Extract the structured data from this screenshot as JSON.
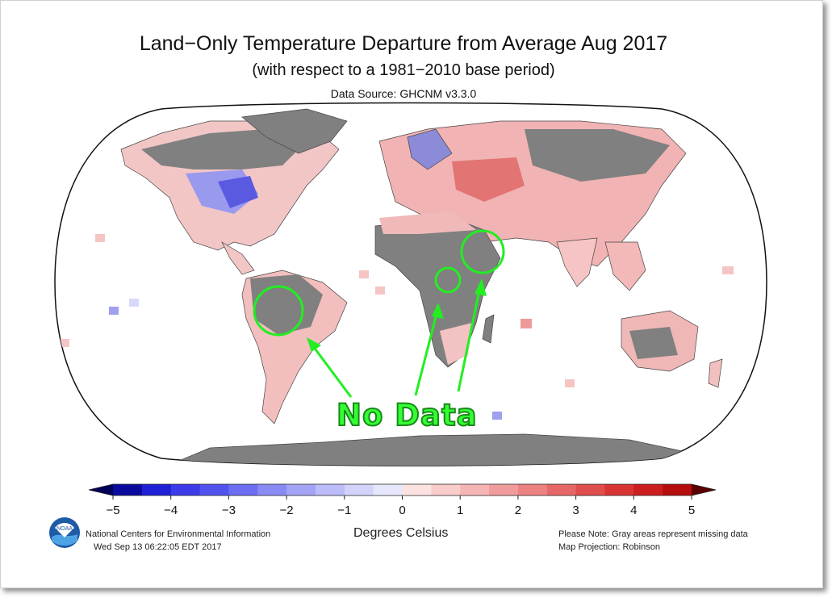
{
  "title": "Land−Only Temperature Departure from Average Aug 2017",
  "subtitle": "(with respect to a 1981−2010 base period)",
  "source": "Data Source: GHCNM v3.3.0",
  "legend": {
    "ticks": [
      "−5",
      "−4",
      "−3",
      "−2",
      "−1",
      "0",
      "1",
      "2",
      "3",
      "4",
      "5"
    ],
    "units": "Degrees Celsius",
    "colors": [
      "#0a0a9c",
      "#1f1fd6",
      "#3b3be8",
      "#5252ef",
      "#6d6df3",
      "#8a8af5",
      "#a4a4f7",
      "#bcbcf9",
      "#d2d2fb",
      "#e6e6fd",
      "#fde2e2",
      "#f9cccc",
      "#f5b5b5",
      "#f19c9c",
      "#ec8282",
      "#e66767",
      "#df4d4d",
      "#d83434",
      "#cc1e1e",
      "#b50d0d"
    ],
    "end_low": "#00005a",
    "end_high": "#5a0000"
  },
  "footer": {
    "org": "National Centers for Environmental Information",
    "timestamp": "Wed Sep 13 06:22:05 EDT 2017",
    "note": "Please Note: Gray areas represent missing data",
    "projection": "Map Projection: Robinson",
    "logo_text": "NOAA"
  },
  "annotation": {
    "label": "No Data",
    "color": "#22ee22"
  }
}
